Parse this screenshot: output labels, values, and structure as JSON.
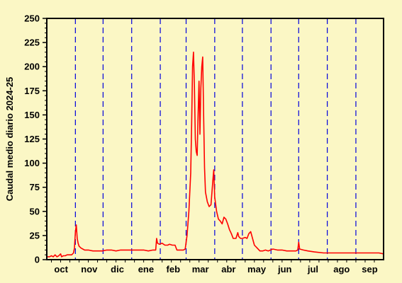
{
  "chart_data": {
    "type": "line",
    "title": "",
    "ylabel": "Caudal medio diario 2024-25",
    "xlabel": "",
    "ylim": [
      0,
      250
    ],
    "xlim_days": [
      0,
      365
    ],
    "yticks": [
      0,
      25,
      50,
      75,
      100,
      125,
      150,
      175,
      200,
      225,
      250
    ],
    "months": [
      "oct",
      "nov",
      "dic",
      "ene",
      "feb",
      "mar",
      "abr",
      "may",
      "jun",
      "jul",
      "ago",
      "sep"
    ],
    "month_boundaries_day": [
      31,
      61,
      92,
      123,
      151,
      182,
      212,
      243,
      273,
      304,
      335
    ],
    "grid": "vertical dashed lines at month boundaries",
    "colors": {
      "background": "#fbf7c5",
      "line": "#ff0000",
      "month_divider": "#0000dd",
      "axis": "#000000"
    },
    "series": [
      {
        "values": [
          [
            0,
            3
          ],
          [
            3,
            3
          ],
          [
            5,
            4
          ],
          [
            7,
            3
          ],
          [
            9,
            5
          ],
          [
            11,
            3
          ],
          [
            13,
            4
          ],
          [
            15,
            6
          ],
          [
            16,
            3
          ],
          [
            18,
            4
          ],
          [
            20,
            4
          ],
          [
            22,
            5
          ],
          [
            24,
            5
          ],
          [
            27,
            5
          ],
          [
            29,
            7
          ],
          [
            30,
            12
          ],
          [
            31,
            28
          ],
          [
            32,
            36
          ],
          [
            33,
            22
          ],
          [
            34,
            17
          ],
          [
            35,
            14
          ],
          [
            37,
            12
          ],
          [
            39,
            11
          ],
          [
            41,
            10
          ],
          [
            45,
            10
          ],
          [
            50,
            9
          ],
          [
            55,
            9
          ],
          [
            60,
            9
          ],
          [
            65,
            10
          ],
          [
            70,
            10
          ],
          [
            75,
            9
          ],
          [
            80,
            10
          ],
          [
            85,
            10
          ],
          [
            90,
            10
          ],
          [
            95,
            10
          ],
          [
            100,
            10
          ],
          [
            105,
            10
          ],
          [
            110,
            9
          ],
          [
            115,
            10
          ],
          [
            118,
            10
          ],
          [
            119,
            22
          ],
          [
            120,
            17
          ],
          [
            122,
            16
          ],
          [
            125,
            17
          ],
          [
            128,
            15
          ],
          [
            131,
            15
          ],
          [
            133,
            16
          ],
          [
            136,
            15
          ],
          [
            139,
            15
          ],
          [
            141,
            10
          ],
          [
            145,
            10
          ],
          [
            148,
            10
          ],
          [
            150,
            11
          ],
          [
            152,
            25
          ],
          [
            154,
            50
          ],
          [
            156,
            90
          ],
          [
            157,
            140
          ],
          [
            158,
            200
          ],
          [
            159,
            215
          ],
          [
            160,
            180
          ],
          [
            161,
            125
          ],
          [
            162,
            112
          ],
          [
            163,
            108
          ],
          [
            164,
            150
          ],
          [
            165,
            185
          ],
          [
            166,
            130
          ],
          [
            167,
            178
          ],
          [
            168,
            200
          ],
          [
            169,
            210
          ],
          [
            170,
            150
          ],
          [
            171,
            95
          ],
          [
            172,
            70
          ],
          [
            174,
            60
          ],
          [
            176,
            55
          ],
          [
            178,
            57
          ],
          [
            180,
            82
          ],
          [
            181,
            93
          ],
          [
            182,
            65
          ],
          [
            184,
            50
          ],
          [
            186,
            42
          ],
          [
            188,
            40
          ],
          [
            190,
            37
          ],
          [
            192,
            44
          ],
          [
            194,
            42
          ],
          [
            196,
            37
          ],
          [
            198,
            31
          ],
          [
            200,
            27
          ],
          [
            202,
            22
          ],
          [
            205,
            22
          ],
          [
            207,
            28
          ],
          [
            208,
            24
          ],
          [
            210,
            22
          ],
          [
            212,
            22
          ],
          [
            215,
            23
          ],
          [
            217,
            22
          ],
          [
            219,
            27
          ],
          [
            221,
            29
          ],
          [
            223,
            22
          ],
          [
            225,
            15
          ],
          [
            228,
            12
          ],
          [
            231,
            9
          ],
          [
            234,
            9
          ],
          [
            237,
            10
          ],
          [
            240,
            9
          ],
          [
            245,
            11
          ],
          [
            250,
            10
          ],
          [
            255,
            10
          ],
          [
            260,
            9
          ],
          [
            265,
            9
          ],
          [
            270,
            9
          ],
          [
            272,
            10
          ],
          [
            273,
            18
          ],
          [
            274,
            11
          ],
          [
            278,
            10
          ],
          [
            283,
            9
          ],
          [
            290,
            8
          ],
          [
            300,
            7
          ],
          [
            310,
            7
          ],
          [
            320,
            7
          ],
          [
            330,
            7
          ],
          [
            340,
            7
          ],
          [
            350,
            7
          ],
          [
            360,
            7
          ],
          [
            365,
            6
          ]
        ]
      }
    ]
  }
}
